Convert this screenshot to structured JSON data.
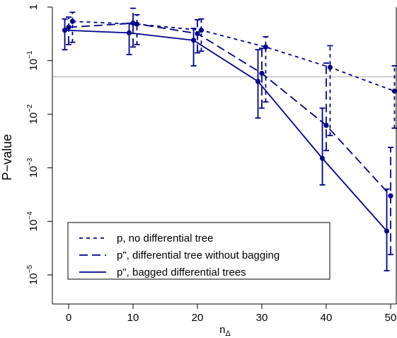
{
  "chart_data": {
    "type": "line",
    "title": "",
    "xlabel": "n",
    "xlabel_sub": "Δ",
    "ylabel": "P−value",
    "xlim": [
      -1,
      51
    ],
    "ylim": [
      3.5e-06,
      1
    ],
    "yscale": "log",
    "x_ticks": [
      "0",
      "10",
      "20",
      "30",
      "40",
      "50"
    ],
    "y_ticks": [
      {
        "base": "1",
        "exp": ""
      },
      {
        "base": "10",
        "exp": "−1"
      },
      {
        "base": "10",
        "exp": "−2"
      },
      {
        "base": "10",
        "exp": "−3"
      },
      {
        "base": "10",
        "exp": "−4"
      },
      {
        "base": "10",
        "exp": "−5"
      }
    ],
    "reference_line": {
      "y": 0.05,
      "color": "#c0c0c0"
    },
    "grid": false,
    "legend_position": "bottom-left",
    "color": "#00008b",
    "series": [
      {
        "name": "p, no differential tree",
        "dash": "dotted",
        "x": [
          0.6,
          10.6,
          20.6,
          30.6,
          40.6,
          50.6
        ],
        "y": [
          0.54,
          0.48,
          0.37,
          0.18,
          0.075,
          0.027
        ],
        "err_low": [
          0.22,
          0.2,
          0.15,
          0.017,
          0.004,
          0.0055
        ],
        "err_high": [
          0.8,
          0.72,
          0.6,
          0.28,
          0.19,
          0.08
        ]
      },
      {
        "name": "p\", differential tree without bagging",
        "dash": "dashed",
        "x": [
          0,
          10,
          20,
          30,
          40,
          50
        ],
        "y": [
          0.42,
          0.5,
          0.32,
          0.058,
          0.0062,
          0.0003
        ],
        "err_low": [
          0.2,
          0.18,
          0.14,
          0.013,
          0.0021,
          2.4e-05
        ],
        "err_high": [
          0.65,
          0.95,
          0.58,
          0.17,
          0.09,
          0.0024
        ]
      },
      {
        "name": "p\", bagged differential trees",
        "dash": "solid",
        "x": [
          -0.6,
          9.4,
          19.4,
          29.4,
          39.4,
          49.4
        ],
        "y": [
          0.37,
          0.33,
          0.24,
          0.041,
          0.0015,
          6.6e-05
        ],
        "err_low": [
          0.16,
          0.13,
          0.08,
          0.0085,
          0.00048,
          1.2e-05
        ],
        "err_high": [
          0.6,
          0.5,
          0.4,
          0.16,
          0.013,
          0.0004
        ]
      }
    ]
  }
}
